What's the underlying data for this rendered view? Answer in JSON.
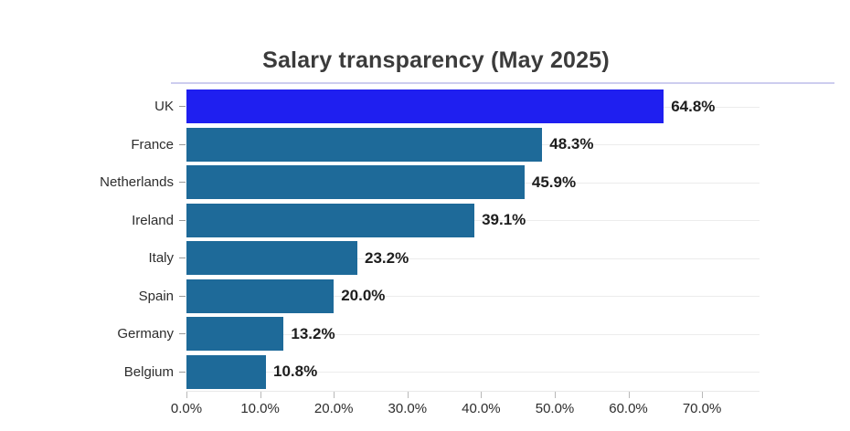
{
  "chart_data": {
    "type": "bar",
    "orientation": "horizontal",
    "title": "Salary transparency (May 2025)",
    "categories": [
      "UK",
      "France",
      "Netherlands",
      "Ireland",
      "Italy",
      "Spain",
      "Germany",
      "Belgium"
    ],
    "values": [
      64.8,
      48.3,
      45.9,
      39.1,
      23.2,
      20.0,
      13.2,
      10.8
    ],
    "value_labels": [
      "64.8%",
      "48.3%",
      "45.9%",
      "39.1%",
      "23.2%",
      "20.0%",
      "13.2%",
      "10.8%"
    ],
    "x_ticks": [
      0,
      10,
      20,
      30,
      40,
      50,
      60,
      70
    ],
    "x_tick_labels": [
      "0.0%",
      "10.0%",
      "20.0%",
      "30.0%",
      "40.0%",
      "50.0%",
      "60.0%",
      "70.0%"
    ],
    "xlim": [
      0,
      77.8
    ],
    "highlighted_category": "UK",
    "legend": "none",
    "grid": "horizontal-row-gridlines",
    "colors": {
      "highlight_bar": "#1f1ff0",
      "bar": "#1e6a99",
      "title_text": "#3b3b3b",
      "axis_text": "#2d2d2d",
      "value_text": "#1d1d1d",
      "gridline": "#ececec",
      "title_underline": "#cdcdef"
    }
  }
}
